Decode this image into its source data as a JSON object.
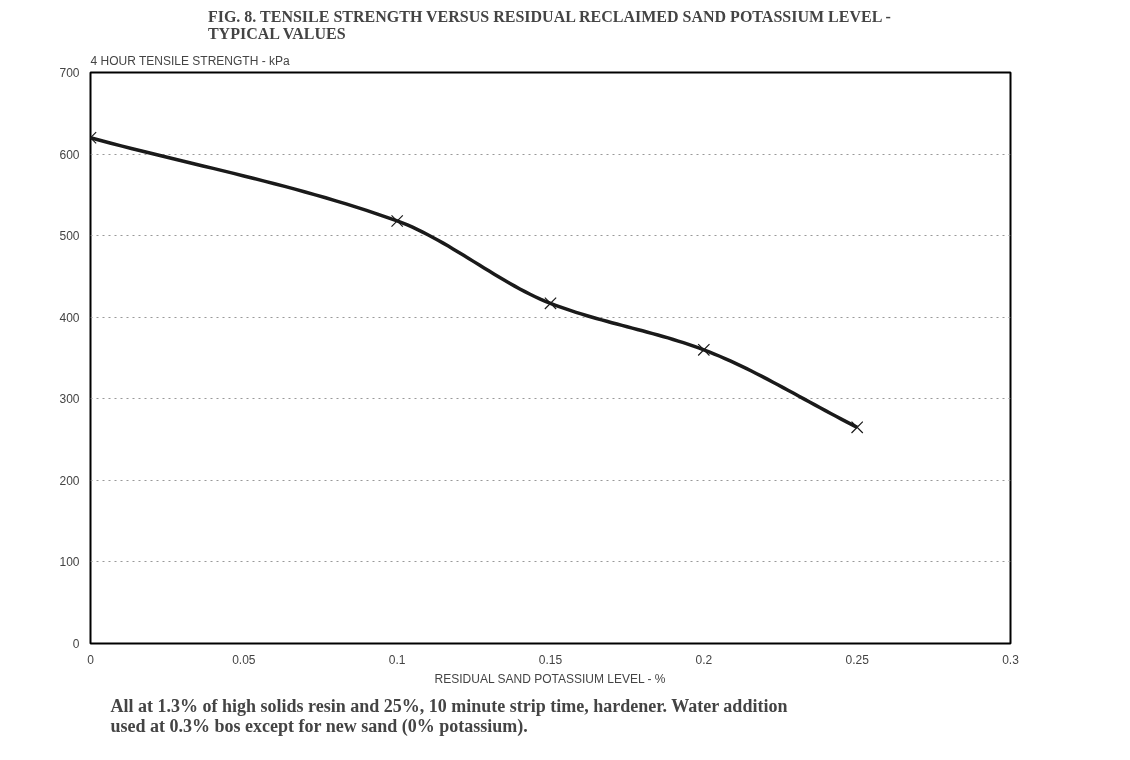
{
  "chart_data": {
    "type": "line",
    "title": "FIG. 8. TENSILE STRENGTH VERSUS RESIDUAL RECLAIMED SAND POTASSIUM LEVEL -\nTYPICAL VALUES",
    "ylabel": "4 HOUR TENSILE STRENGTH - kPa",
    "xlabel": "RESIDUAL SAND POTASSIUM LEVEL - %",
    "annotations": [
      "All at 1.3% of high solids resin and 25%, 10 minute strip time, hardener. Water addition\nused at 0.3% bos except for new sand (0% potassium)."
    ],
    "x": [
      0,
      0.1,
      0.15,
      0.2,
      0.25
    ],
    "series": [
      {
        "color": "#1a1a1a",
        "values": [
          620,
          518,
          417,
          360,
          265
        ]
      }
    ],
    "xlim": [
      0,
      0.3
    ],
    "xticks": [
      0,
      0.05,
      0.1,
      0.15,
      0.2,
      0.25,
      0.3
    ],
    "ylim": [
      0,
      700
    ],
    "yticks": [
      0,
      100,
      200,
      300,
      400,
      500,
      600,
      700
    ],
    "grid": "y",
    "marker": "cross",
    "line_style": "solid"
  }
}
